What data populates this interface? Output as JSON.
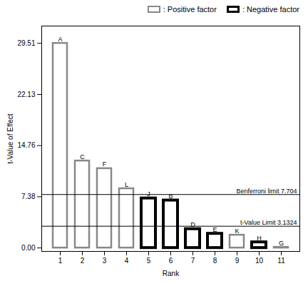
{
  "chart_data": {
    "type": "bar",
    "categories": [
      "1",
      "2",
      "3",
      "4",
      "5",
      "6",
      "7",
      "8",
      "9",
      "10",
      "11"
    ],
    "series": [
      {
        "name": ": Positive factor",
        "color": "#888888",
        "values": [
          29.51,
          12.55,
          11.45,
          8.55,
          null,
          null,
          null,
          null,
          1.85,
          null,
          0.1
        ]
      },
      {
        "name": ": Negative factor",
        "color": "#000000",
        "values": [
          null,
          null,
          null,
          null,
          7.15,
          6.85,
          2.72,
          2.05,
          null,
          0.82,
          null
        ]
      }
    ],
    "bar_labels": [
      "A",
      "C",
      "F",
      "L",
      "J",
      "B",
      "D",
      "E",
      "K",
      "H",
      "G"
    ],
    "hlines": [
      {
        "y": 7.704,
        "label": "Benferroni limit 7.704"
      },
      {
        "y": 3.1324,
        "label": "t-Value Limit 3.1324"
      }
    ],
    "xlabel": "Rank",
    "ylabel": "t-Value of Effect",
    "ylim": [
      -0.5,
      32.0
    ],
    "yticks": [
      {
        "value": 0,
        "label": "0.00"
      },
      7.38,
      14.76,
      22.13,
      29.51
    ],
    "legend": "upper right",
    "grid": false
  }
}
